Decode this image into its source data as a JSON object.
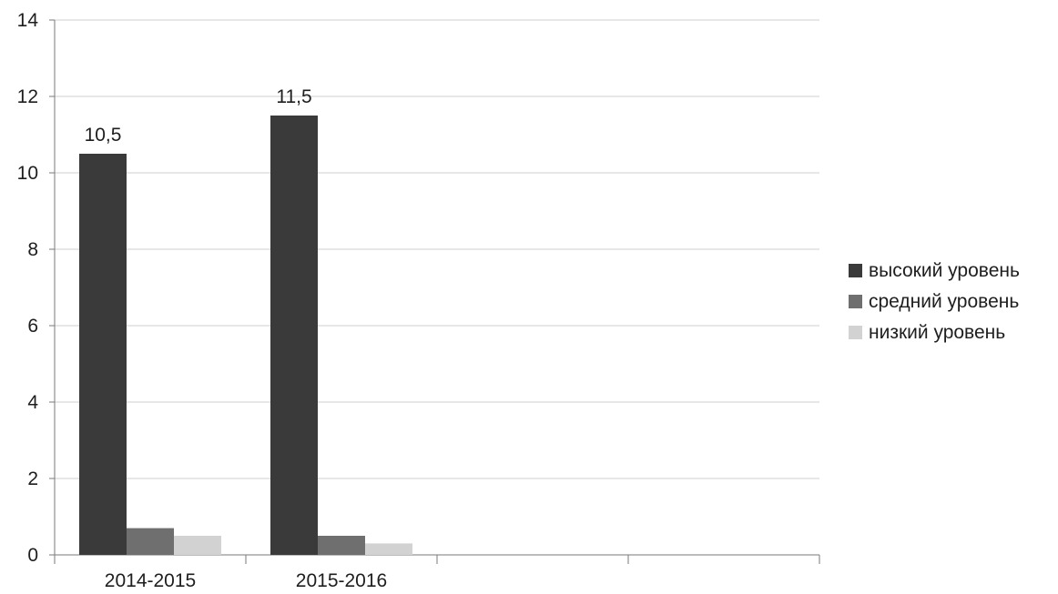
{
  "chart_data": {
    "type": "bar",
    "categories": [
      "2014-2015",
      "2015-2016",
      "",
      ""
    ],
    "series": [
      {
        "name": "высокий уровень",
        "values": [
          10.5,
          11.5,
          null,
          null
        ],
        "color": "#3a3a3a"
      },
      {
        "name": "средний уровень",
        "values": [
          0.7,
          0.5,
          null,
          null
        ],
        "color": "#6f6f6f"
      },
      {
        "name": "низкий уровень",
        "values": [
          0.5,
          0.3,
          null,
          null
        ],
        "color": "#d2d2d2"
      }
    ],
    "data_labels": [
      "10,5",
      "11,5"
    ],
    "yticks": [
      "0",
      "2",
      "4",
      "6",
      "8",
      "10",
      "12",
      "14"
    ],
    "ylim": [
      0,
      14
    ],
    "grid": true,
    "legend_position": "right"
  }
}
